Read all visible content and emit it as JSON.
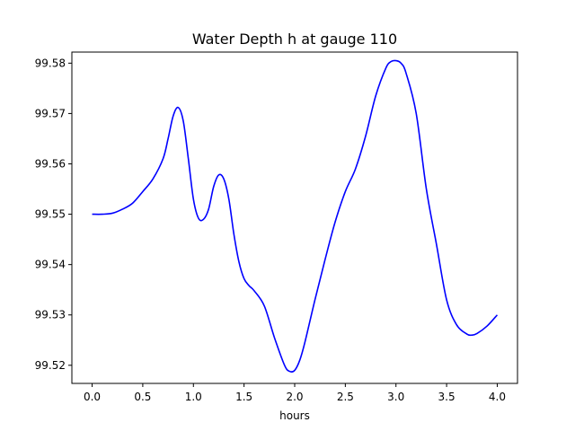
{
  "chart_data": {
    "type": "line",
    "title": "Water Depth h at gauge 110",
    "xlabel": "hours",
    "ylabel": "",
    "xlim": [
      -0.2,
      4.2
    ],
    "ylim": [
      99.5164,
      99.5822
    ],
    "xticks": [
      0.0,
      0.5,
      1.0,
      1.5,
      2.0,
      2.5,
      3.0,
      3.5,
      4.0
    ],
    "xtick_labels": [
      "0.0",
      "0.5",
      "1.0",
      "1.5",
      "2.0",
      "2.5",
      "3.0",
      "3.5",
      "4.0"
    ],
    "yticks": [
      99.52,
      99.53,
      99.54,
      99.55,
      99.56,
      99.57,
      99.58
    ],
    "ytick_labels": [
      "99.52",
      "99.53",
      "99.54",
      "99.55",
      "99.56",
      "99.57",
      "99.58"
    ],
    "grid": false,
    "legend": "none",
    "series": [
      {
        "color": "#0000ff",
        "x": [
          0.0,
          0.1,
          0.2,
          0.3,
          0.4,
          0.5,
          0.6,
          0.7,
          0.75,
          0.8,
          0.85,
          0.9,
          0.95,
          1.0,
          1.05,
          1.1,
          1.15,
          1.2,
          1.25,
          1.3,
          1.35,
          1.4,
          1.45,
          1.5,
          1.55,
          1.6,
          1.7,
          1.8,
          1.9,
          1.95,
          2.0,
          2.05,
          2.1,
          2.2,
          2.3,
          2.4,
          2.5,
          2.6,
          2.7,
          2.8,
          2.9,
          2.95,
          3.0,
          3.05,
          3.1,
          3.2,
          3.3,
          3.4,
          3.5,
          3.6,
          3.7,
          3.75,
          3.8,
          3.9,
          4.0
        ],
        "y": [
          99.55,
          99.55,
          99.5502,
          99.551,
          99.5522,
          99.5545,
          99.557,
          99.561,
          99.565,
          99.5695,
          99.5712,
          99.5685,
          99.561,
          99.553,
          99.5492,
          99.549,
          99.551,
          99.5555,
          99.5578,
          99.557,
          99.553,
          99.546,
          99.5405,
          99.5372,
          99.5358,
          99.5348,
          99.5318,
          99.5255,
          99.52,
          99.5188,
          99.519,
          99.521,
          99.5245,
          99.533,
          99.541,
          99.5485,
          99.5545,
          99.559,
          99.5655,
          99.5735,
          99.579,
          99.5803,
          99.5805,
          99.58,
          99.578,
          99.57,
          99.555,
          99.544,
          99.533,
          99.528,
          99.5262,
          99.526,
          99.5263,
          99.5278,
          99.53
        ]
      }
    ]
  }
}
